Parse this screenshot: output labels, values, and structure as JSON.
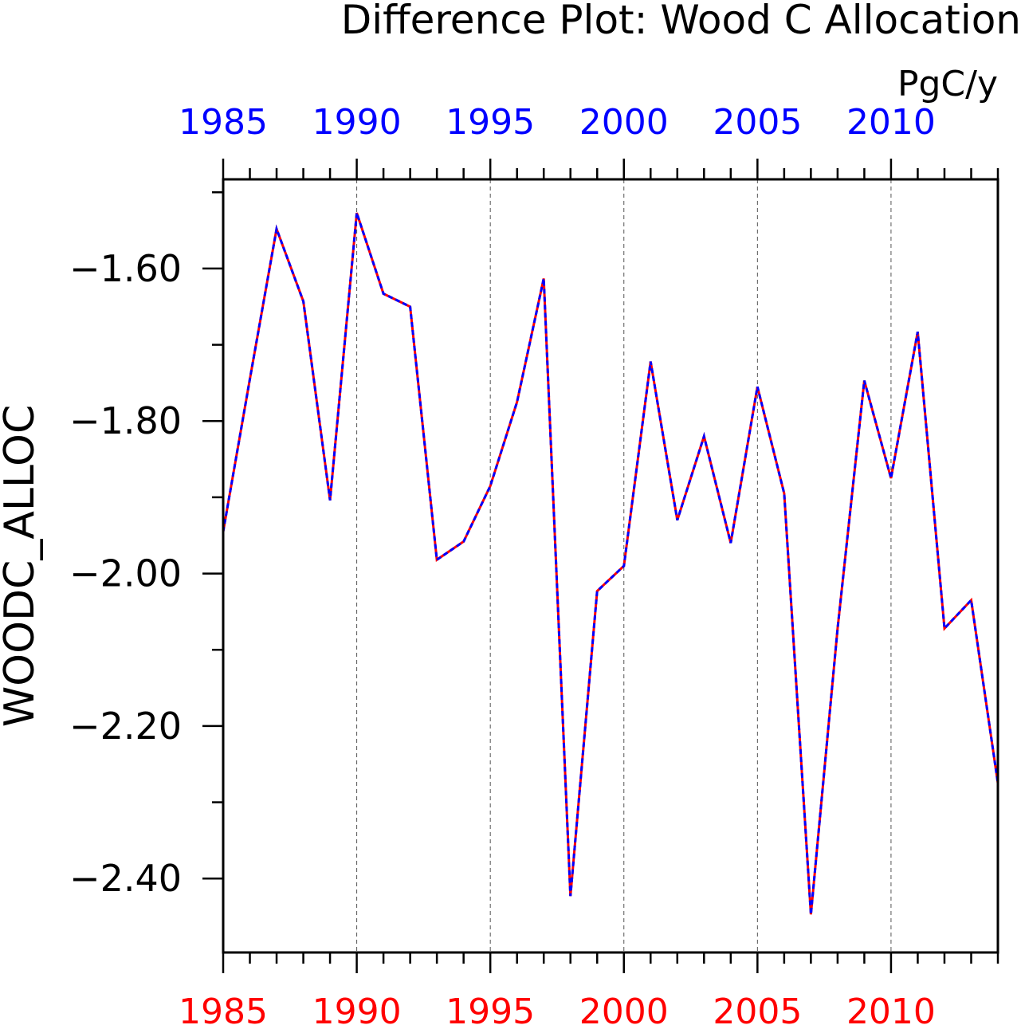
{
  "chart_data": {
    "type": "line",
    "title": "Difference Plot: Wood C Allocation",
    "units": "PgC/y",
    "ylabel": "WOODC_ALLOC",
    "xlabel": "",
    "xlim": [
      1985,
      2014
    ],
    "ylim": [
      -2.497,
      -1.483
    ],
    "x_tick_labels": [
      "1985",
      "1990",
      "1995",
      "2000",
      "2005",
      "2010"
    ],
    "x_ticks": [
      1985,
      1990,
      1995,
      2000,
      2005,
      2010
    ],
    "y_tick_labels": [
      "−1.60",
      "−1.80",
      "−2.00",
      "−2.20",
      "−2.40"
    ],
    "y_ticks": [
      -1.6,
      -1.8,
      -2.0,
      -2.2,
      -2.4
    ],
    "grid": "vertical dashed at labeled years",
    "x": [
      1985,
      1986,
      1987,
      1988,
      1989,
      1990,
      1991,
      1992,
      1993,
      1994,
      1995,
      1996,
      1997,
      1998,
      1999,
      2000,
      2001,
      2002,
      2003,
      2004,
      2005,
      2006,
      2007,
      2008,
      2009,
      2010,
      2011,
      2012,
      2013,
      2014
    ],
    "series": [
      {
        "color": "#ff0000",
        "style": "solid",
        "values": [
          -1.945,
          -1.745,
          -1.548,
          -1.643,
          -1.904,
          -1.527,
          -1.633,
          -1.65,
          -1.982,
          -1.958,
          -1.885,
          -1.775,
          -1.613,
          -2.423,
          -2.023,
          -1.99,
          -1.722,
          -1.93,
          -1.82,
          -1.96,
          -1.755,
          -1.895,
          -2.447,
          -2.072,
          -1.747,
          -1.875,
          -1.683,
          -2.072,
          -2.035,
          -2.275
        ]
      },
      {
        "color": "#0000ff",
        "style": "dashed",
        "values": [
          -1.945,
          -1.745,
          -1.548,
          -1.643,
          -1.904,
          -1.527,
          -1.633,
          -1.65,
          -1.982,
          -1.958,
          -1.885,
          -1.775,
          -1.613,
          -2.423,
          -2.023,
          -1.99,
          -1.722,
          -1.93,
          -1.82,
          -1.96,
          -1.755,
          -1.895,
          -2.447,
          -2.072,
          -1.747,
          -1.875,
          -1.683,
          -2.072,
          -2.035,
          -2.275
        ]
      }
    ],
    "top_axis_color": "#0000ff",
    "bottom_axis_color": "#ff0000"
  }
}
